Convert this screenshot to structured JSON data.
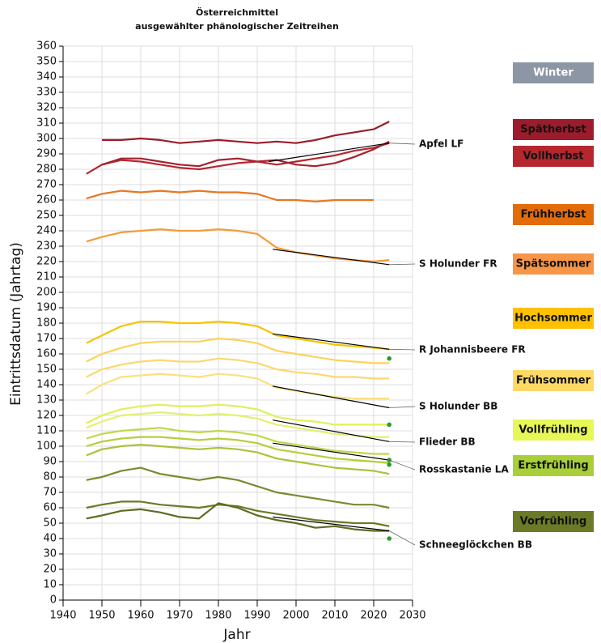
{
  "chart_data": {
    "type": "line",
    "title": "Österreichmittel",
    "subtitle": "ausgewählter phänologischer Zeitreihen",
    "xlabel": "Jahr",
    "ylabel": "Eintrittsdatum (Jahrtag)",
    "xlim": [
      1940,
      2030
    ],
    "xticks": [
      1940,
      1950,
      1960,
      1970,
      1980,
      1990,
      2000,
      2010,
      2020,
      2030
    ],
    "ylim": [
      0,
      360
    ],
    "yticks": [
      0,
      10,
      20,
      30,
      40,
      50,
      60,
      70,
      80,
      90,
      100,
      110,
      120,
      130,
      140,
      150,
      160,
      170,
      180,
      190,
      200,
      210,
      220,
      230,
      240,
      250,
      260,
      270,
      280,
      290,
      300,
      310,
      320,
      330,
      340,
      350,
      360
    ],
    "grid": true,
    "x": [
      1946,
      1950,
      1955,
      1960,
      1965,
      1970,
      1975,
      1980,
      1985,
      1990,
      1995,
      2000,
      2005,
      2010,
      2015,
      2020,
      2024
    ],
    "series": [
      {
        "color": "#9b1c2c",
        "values": [
          null,
          299,
          299,
          300,
          299,
          297,
          298,
          299,
          298,
          297,
          298,
          297,
          299,
          302,
          304,
          306,
          311
        ]
      },
      {
        "color": "#b5272d",
        "values": [
          277,
          283,
          286,
          285,
          283,
          281,
          280,
          282,
          284,
          285,
          283,
          285,
          287,
          289,
          292,
          294,
          297
        ]
      },
      {
        "color": "#a52330",
        "values": [
          null,
          283,
          287,
          287,
          285,
          283,
          282,
          286,
          287,
          285,
          286,
          283,
          282,
          284,
          288,
          293,
          298
        ]
      },
      {
        "color": "#e87722",
        "values": [
          261,
          264,
          266,
          265,
          266,
          265,
          266,
          265,
          265,
          264,
          260,
          260,
          259,
          260,
          260,
          260,
          null
        ]
      },
      {
        "color": "#f39c3c",
        "values": [
          233,
          236,
          239,
          240,
          241,
          240,
          240,
          241,
          240,
          238,
          229,
          226,
          224,
          222,
          221,
          220,
          221
        ]
      },
      {
        "color": "#f5c400",
        "values": [
          167,
          172,
          178,
          181,
          181,
          180,
          180,
          181,
          180,
          178,
          172,
          170,
          168,
          166,
          165,
          164,
          163
        ]
      },
      {
        "color": "#fad45a",
        "values": [
          155,
          160,
          164,
          167,
          168,
          168,
          168,
          170,
          169,
          167,
          162,
          160,
          158,
          156,
          155,
          154,
          154
        ]
      },
      {
        "color": "#fbd870",
        "values": [
          145,
          150,
          153,
          155,
          156,
          155,
          155,
          157,
          156,
          154,
          150,
          148,
          147,
          145,
          145,
          144,
          144
        ]
      },
      {
        "color": "#fbe07f",
        "values": [
          134,
          140,
          145,
          146,
          147,
          146,
          145,
          147,
          146,
          144,
          138,
          136,
          134,
          132,
          131,
          131,
          131
        ]
      },
      {
        "color": "#dff05a",
        "values": [
          115,
          120,
          124,
          126,
          127,
          126,
          126,
          127,
          126,
          124,
          119,
          117,
          116,
          114,
          114,
          114,
          114
        ]
      },
      {
        "color": "#e3f06f",
        "values": [
          112,
          116,
          120,
          121,
          122,
          121,
          120,
          121,
          120,
          118,
          114,
          112,
          110,
          108,
          107,
          106,
          106
        ]
      },
      {
        "color": "#c0d84a",
        "values": [
          105,
          108,
          110,
          111,
          112,
          110,
          109,
          110,
          109,
          107,
          103,
          101,
          99,
          97,
          96,
          95,
          95
        ]
      },
      {
        "color": "#b5cf3a",
        "values": [
          100,
          103,
          105,
          106,
          106,
          105,
          104,
          105,
          104,
          102,
          98,
          96,
          94,
          92,
          91,
          90,
          89
        ]
      },
      {
        "color": "#a9c43a",
        "values": [
          94,
          98,
          100,
          101,
          100,
          99,
          98,
          99,
          98,
          96,
          92,
          90,
          88,
          86,
          85,
          84,
          82
        ]
      },
      {
        "color": "#7a8a30",
        "values": [
          78,
          80,
          84,
          86,
          82,
          80,
          78,
          80,
          78,
          74,
          70,
          68,
          66,
          64,
          62,
          62,
          60
        ]
      },
      {
        "color": "#6b7a26",
        "values": [
          60,
          62,
          64,
          64,
          62,
          61,
          60,
          62,
          61,
          58,
          56,
          54,
          52,
          51,
          50,
          50,
          48
        ]
      },
      {
        "color": "#5e6b22",
        "values": [
          53,
          55,
          58,
          59,
          57,
          54,
          53,
          63,
          60,
          55,
          52,
          50,
          47,
          48,
          46,
          45,
          45
        ]
      }
    ],
    "trends": [
      {
        "label": "Apfel LF",
        "x": [
          1993,
          2024
        ],
        "y": [
          285,
          297
        ]
      },
      {
        "label": "S Holunder FR",
        "x": [
          1994,
          2024
        ],
        "y": [
          228,
          218
        ]
      },
      {
        "label": "R Johannisbeere FR",
        "x": [
          1994,
          2024
        ],
        "y": [
          173,
          163
        ]
      },
      {
        "label": "S Holunder BB",
        "x": [
          1994,
          2024
        ],
        "y": [
          139,
          125
        ]
      },
      {
        "label": "Flieder BB",
        "x": [
          1994,
          2024
        ],
        "y": [
          117,
          103
        ]
      },
      {
        "label": "Rosskastanie LA",
        "x": [
          1994,
          2024
        ],
        "y": [
          102,
          91
        ]
      },
      {
        "label": "Schneeglöckchen BB",
        "x": [
          1994,
          2024
        ],
        "y": [
          54,
          45
        ]
      }
    ],
    "markers": {
      "color": "#2e9a2e",
      "x": [
        2024,
        2024,
        2024,
        2024,
        2024
      ],
      "values": [
        157,
        114,
        91,
        88,
        40
      ]
    },
    "phases": [
      {
        "label": "Winter",
        "color": "#8c96a4"
      },
      {
        "label": "Spätherbst",
        "color": "#9b1c2c"
      },
      {
        "label": "Vollherbst",
        "color": "#b5272d"
      },
      {
        "label": "Frühherbst",
        "color": "#e36c0a"
      },
      {
        "label": "Spätsommer",
        "color": "#f79646"
      },
      {
        "label": "Hochsommer",
        "color": "#ffc000"
      },
      {
        "label": "Frühsommer",
        "color": "#ffd966"
      },
      {
        "label": "Vollfrühling",
        "color": "#e6f756"
      },
      {
        "label": "Erstfrühling",
        "color": "#a9cf38"
      },
      {
        "label": "Vorfrühling",
        "color": "#6b7a26"
      }
    ]
  }
}
